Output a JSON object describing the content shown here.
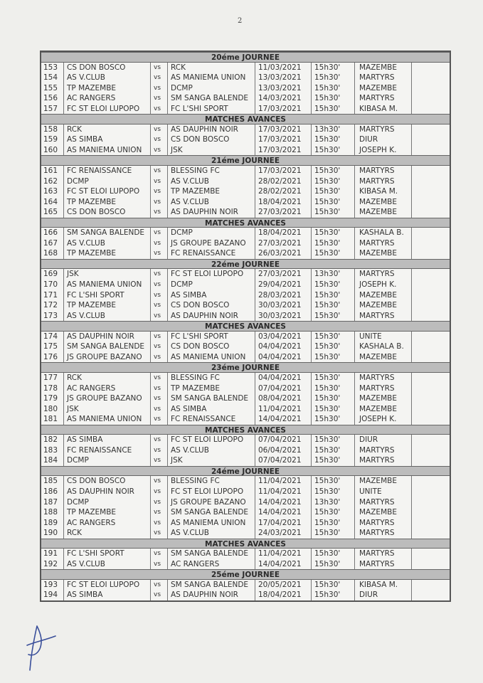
{
  "page_number": "2",
  "vs_label": "vs",
  "sections": [
    {
      "title": "20éme JOURNEE",
      "matches": [
        [
          "153",
          "CS DON BOSCO",
          "RCK",
          "11/03/2021",
          "15h30'",
          "MAZEMBE"
        ],
        [
          "154",
          "AS V.CLUB",
          "AS MANIEMA UNION",
          "13/03/2021",
          "15h30'",
          "MARTYRS"
        ],
        [
          "155",
          "TP MAZEMBE",
          "DCMP",
          "13/03/2021",
          "15h30'",
          "MAZEMBE"
        ],
        [
          "156",
          "AC RANGERS",
          "SM SANGA BALENDE",
          "14/03/2021",
          "15h30'",
          "MARTYRS"
        ],
        [
          "157",
          "FC ST ELOI LUPOPO",
          "FC L'SHI SPORT",
          "17/03/2021",
          "15h30'",
          "KIBASA M."
        ]
      ]
    },
    {
      "title": "MATCHES AVANCES",
      "matches": [
        [
          "158",
          "RCK",
          "AS DAUPHIN NOIR",
          "17/03/2021",
          "13h30'",
          "MARTYRS"
        ],
        [
          "159",
          "AS SIMBA",
          "CS DON BOSCO",
          "17/03/2021",
          "15h30'",
          "DIUR"
        ],
        [
          "160",
          "AS MANIEMA UNION",
          "JSK",
          "17/03/2021",
          "15h30'",
          "JOSEPH K."
        ]
      ]
    },
    {
      "title": "21éme JOURNEE",
      "matches": [
        [
          "161",
          "FC RENAISSANCE",
          "BLESSING FC",
          "17/03/2021",
          "15h30'",
          "MARTYRS"
        ],
        [
          "162",
          "DCMP",
          "AS V.CLUB",
          "28/02/2021",
          "15h30'",
          "MARTYRS"
        ],
        [
          "163",
          "FC ST ELOI LUPOPO",
          "TP MAZEMBE",
          "28/02/2021",
          "15h30'",
          "KIBASA M."
        ],
        [
          "164",
          "TP MAZEMBE",
          "AS V.CLUB",
          "18/04/2021",
          "15h30'",
          "MAZEMBE"
        ],
        [
          "165",
          "CS DON BOSCO",
          "AS DAUPHIN NOIR",
          "27/03/2021",
          "15h30'",
          "MAZEMBE"
        ]
      ]
    },
    {
      "title": "MATCHES AVANCES",
      "matches": [
        [
          "166",
          "SM SANGA BALENDE",
          "DCMP",
          "18/04/2021",
          "15h30'",
          "KASHALA B."
        ],
        [
          "167",
          "AS V.CLUB",
          "JS GROUPE BAZANO",
          "27/03/2021",
          "15h30'",
          "MARTYRS"
        ],
        [
          "168",
          "TP MAZEMBE",
          "FC RENAISSANCE",
          "26/03/2021",
          "15h30'",
          "MAZEMBE"
        ]
      ]
    },
    {
      "title": "22éme JOURNEE",
      "matches": [
        [
          "169",
          "JSK",
          "FC ST ELOI LUPOPO",
          "27/03/2021",
          "13h30'",
          "MARTYRS"
        ],
        [
          "170",
          "AS MANIEMA UNION",
          "DCMP",
          "29/04/2021",
          "15h30'",
          "JOSEPH K."
        ],
        [
          "171",
          "FC L'SHI SPORT",
          "AS SIMBA",
          "28/03/2021",
          "15h30'",
          "MAZEMBE"
        ],
        [
          "172",
          "TP MAZEMBE",
          "CS DON BOSCO",
          "30/03/2021",
          "15h30'",
          "MAZEMBE"
        ],
        [
          "173",
          "AS V.CLUB",
          "AS DAUPHIN NOIR",
          "30/03/2021",
          "15h30'",
          "MARTYRS"
        ]
      ]
    },
    {
      "title": "MATCHES AVANCES",
      "matches": [
        [
          "174",
          "AS DAUPHIN NOIR",
          "FC L'SHI SPORT",
          "03/04/2021",
          "15h30'",
          "UNITE"
        ],
        [
          "175",
          "SM SANGA BALENDE",
          "CS DON BOSCO",
          "04/04/2021",
          "15h30'",
          "KASHALA B."
        ],
        [
          "176",
          "JS GROUPE BAZANO",
          "AS MANIEMA UNION",
          "04/04/2021",
          "15h30'",
          "MAZEMBE"
        ]
      ]
    },
    {
      "title": "23éme JOURNEE",
      "matches": [
        [
          "177",
          "RCK",
          "BLESSING FC",
          "04/04/2021",
          "15h30'",
          "MARTYRS"
        ],
        [
          "178",
          "AC RANGERS",
          "TP MAZEMBE",
          "07/04/2021",
          "15h30'",
          "MARTYRS"
        ],
        [
          "179",
          "JS GROUPE BAZANO",
          "SM SANGA BALENDE",
          "08/04/2021",
          "15h30'",
          "MAZEMBE"
        ],
        [
          "180",
          "JSK",
          "AS SIMBA",
          "11/04/2021",
          "15h30'",
          "MAZEMBE"
        ],
        [
          "181",
          "AS MANIEMA UNION",
          "FC RENAISSANCE",
          "14/04/2021",
          "15h30'",
          "JOSEPH K."
        ]
      ]
    },
    {
      "title": "MATCHES AVANCES",
      "matches": [
        [
          "182",
          "AS SIMBA",
          "FC ST ELOI LUPOPO",
          "07/04/2021",
          "15h30'",
          "DIUR"
        ],
        [
          "183",
          "FC RENAISSANCE",
          "AS V.CLUB",
          "06/04/2021",
          "15h30'",
          "MARTYRS"
        ],
        [
          "184",
          "DCMP",
          "JSK",
          "07/04/2021",
          "15h30'",
          "MARTYRS"
        ]
      ]
    },
    {
      "title": "24éme JOURNEE",
      "matches": [
        [
          "185",
          "CS DON BOSCO",
          "BLESSING FC",
          "11/04/2021",
          "15h30'",
          "MAZEMBE"
        ],
        [
          "186",
          "AS DAUPHIN NOIR",
          "FC ST ELOI LUPOPO",
          "11/04/2021",
          "15h30'",
          "UNITE"
        ],
        [
          "187",
          "DCMP",
          "JS GROUPE BAZANO",
          "14/04/2021",
          "13h30'",
          "MARTYRS"
        ],
        [
          "188",
          "TP MAZEMBE",
          "SM SANGA BALENDE",
          "14/04/2021",
          "15h30'",
          "MAZEMBE"
        ],
        [
          "189",
          "AC RANGERS",
          "AS MANIEMA UNION",
          "17/04/2021",
          "15h30'",
          "MARTYRS"
        ],
        [
          "190",
          "RCK",
          "AS V.CLUB",
          "24/03/2021",
          "15h30'",
          "MARTYRS"
        ]
      ]
    },
    {
      "title": "MATCHES AVANCES",
      "matches": [
        [
          "191",
          "FC L'SHI SPORT",
          "SM SANGA BALENDE",
          "11/04/2021",
          "15h30'",
          "MARTYRS"
        ],
        [
          "192",
          "AS V.CLUB",
          "AC RANGERS",
          "14/04/2021",
          "15h30'",
          "MARTYRS"
        ]
      ]
    },
    {
      "title": "25éme JOURNEE",
      "matches": [
        [
          "193",
          "FC ST ELOI LUPOPO",
          "SM SANGA BALENDE",
          "20/05/2021",
          "15h30'",
          "KIBASA M."
        ],
        [
          "194",
          "AS SIMBA",
          "AS DAUPHIN NOIR",
          "18/04/2021",
          "15h30'",
          "DIUR"
        ]
      ]
    }
  ]
}
